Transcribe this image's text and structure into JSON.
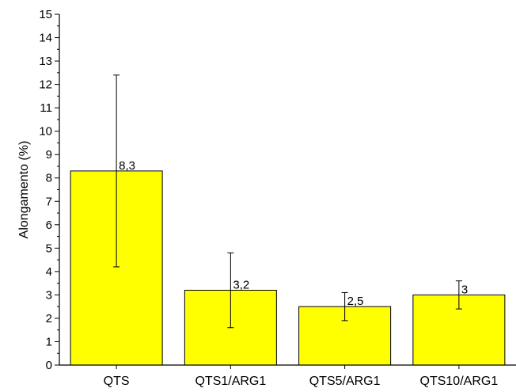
{
  "chart_data": {
    "type": "bar",
    "categories": [
      "QTS",
      "QTS1/ARG1",
      "QTS5/ARG1",
      "QTS10/ARG1"
    ],
    "values": [
      8.3,
      3.2,
      2.5,
      3.0
    ],
    "error_low": [
      4.2,
      1.6,
      1.9,
      2.4
    ],
    "error_high": [
      12.4,
      4.8,
      3.1,
      3.6
    ],
    "data_labels": [
      "8,3",
      "3,2",
      "2,5",
      "3"
    ],
    "title": "",
    "xlabel": "",
    "ylabel": "Alongamento (%)",
    "ylim": [
      0,
      15
    ],
    "yticks": [
      0,
      1,
      2,
      3,
      4,
      5,
      6,
      7,
      8,
      9,
      10,
      11,
      12,
      13,
      14,
      15
    ],
    "bar_color": "#ffff00",
    "grid": false,
    "legend": "none"
  }
}
